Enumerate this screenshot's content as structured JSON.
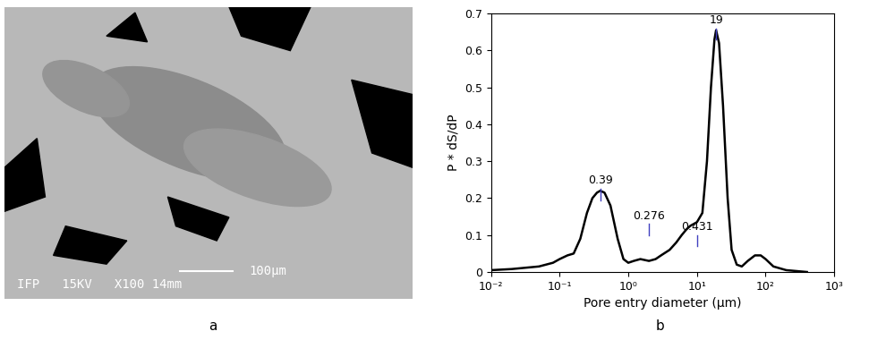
{
  "panel_labels": [
    "a",
    "b"
  ],
  "image": {
    "scale_bar": "100μm",
    "footer": "IFP   15KV   X100 14mm"
  },
  "chart_data": {
    "type": "line",
    "x_label": "Pore entry diameter (μm)",
    "y_label": "P * dS/dP",
    "log": "x",
    "color": "#000000",
    "x": [
      0.01,
      0.02,
      0.05,
      0.08,
      0.1,
      0.13,
      0.16,
      0.2,
      0.25,
      0.3,
      0.35,
      0.39,
      0.45,
      0.55,
      0.7,
      0.85,
      1.0,
      1.2,
      1.5,
      2,
      2.5,
      3,
      4,
      5,
      6,
      7,
      8,
      10,
      12,
      14,
      16,
      18,
      19,
      21,
      24,
      28,
      32,
      38,
      45,
      55,
      70,
      85,
      100,
      130,
      200,
      400
    ],
    "values": [
      0.005,
      0.008,
      0.015,
      0.025,
      0.035,
      0.045,
      0.05,
      0.09,
      0.16,
      0.2,
      0.215,
      0.22,
      0.215,
      0.18,
      0.09,
      0.035,
      0.025,
      0.03,
      0.035,
      0.03,
      0.035,
      0.045,
      0.06,
      0.08,
      0.1,
      0.115,
      0.125,
      0.135,
      0.16,
      0.3,
      0.5,
      0.63,
      0.655,
      0.62,
      0.45,
      0.2,
      0.06,
      0.02,
      0.015,
      0.03,
      0.045,
      0.045,
      0.035,
      0.015,
      0.005,
      0.0
    ],
    "xlim": [
      0.01,
      1000
    ],
    "xticks": [
      {
        "value": 0.01,
        "label": "10⁻²"
      },
      {
        "value": 0.1,
        "label": "10⁻¹"
      },
      {
        "value": 1,
        "label": "10⁰"
      },
      {
        "value": 10,
        "label": "10¹"
      },
      {
        "value": 100,
        "label": "10²"
      },
      {
        "value": 1000,
        "label": "10³"
      }
    ],
    "ylim": [
      0,
      0.7
    ],
    "yticks": [
      0,
      0.1,
      0.2,
      0.3,
      0.4,
      0.5,
      0.6,
      0.7
    ],
    "annotations": [
      {
        "text": "0.39",
        "x": 0.39,
        "y": 0.225
      },
      {
        "text": "0.276",
        "x": 2,
        "y": 0.13
      },
      {
        "text": "0.431",
        "x": 10,
        "y": 0.1
      },
      {
        "text": "19",
        "x": 19,
        "y": 0.66
      }
    ]
  }
}
